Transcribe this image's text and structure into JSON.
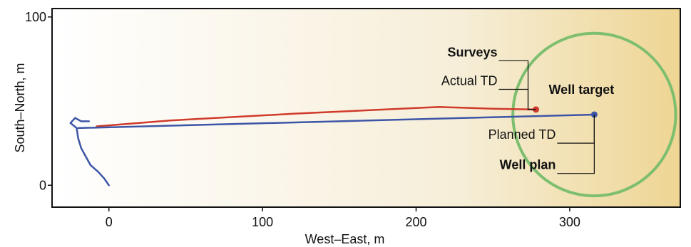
{
  "chart_data": {
    "type": "line",
    "xlabel": "West–East, m",
    "ylabel": "South–North, m",
    "xlim": [
      -37,
      372
    ],
    "ylim": [
      -13,
      105
    ],
    "x_ticks": [
      0,
      100,
      200,
      300
    ],
    "y_ticks": [
      0,
      100
    ],
    "grid": false,
    "background": {
      "gradient_from": "#ffffff",
      "mid": "#f6eed8",
      "gradient_to": "#eed593"
    },
    "series": [
      {
        "name": "Surveys",
        "color": "#d03a2a",
        "points": [
          [
            -8,
            35
          ],
          [
            40,
            38.5
          ],
          [
            120,
            42.5
          ],
          [
            215,
            46.5
          ],
          [
            250,
            45.5
          ],
          [
            278,
            45
          ]
        ],
        "end_marker": [
          278,
          45
        ]
      },
      {
        "name": "Well plan",
        "color": "#3d55a6",
        "points": [
          [
            -20,
            34
          ],
          [
            316,
            42
          ]
        ],
        "end_marker": [
          316,
          42
        ]
      },
      {
        "name": "",
        "color": "#3d55a6",
        "points": [
          [
            0,
            0
          ],
          [
            -3,
            4
          ],
          [
            -7,
            8
          ],
          [
            -12,
            12
          ],
          [
            -15,
            17
          ],
          [
            -18,
            22
          ],
          [
            -20,
            28
          ],
          [
            -21,
            34
          ],
          [
            -25,
            37
          ],
          [
            -22,
            40
          ],
          [
            -18,
            38
          ],
          [
            -13,
            38
          ]
        ]
      }
    ],
    "target": {
      "label": "Well target",
      "center": [
        316,
        42
      ],
      "radius_x": 53,
      "color": "#7dbf6f"
    },
    "annotations": [
      {
        "text": "Surveys",
        "bold": true,
        "anchor": [
          278,
          45
        ],
        "label_y": 74
      },
      {
        "text": "Actual TD",
        "bold": false,
        "anchor": [
          278,
          45
        ],
        "label_y": 57
      },
      {
        "text": "Planned TD",
        "bold": false,
        "anchor": [
          316,
          42
        ],
        "label_y": 25
      },
      {
        "text": "Well plan",
        "bold": true,
        "anchor": [
          316,
          42
        ],
        "label_y": 7
      }
    ]
  }
}
